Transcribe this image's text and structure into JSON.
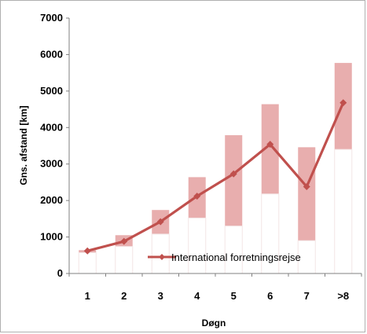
{
  "chart_data": {
    "type": "line",
    "title": "",
    "xlabel": "Døgn",
    "ylabel": "Gns. afstand [km]",
    "categories": [
      "1",
      "2",
      "3",
      "4",
      "5",
      "6",
      "7",
      ">8"
    ],
    "ylim": [
      0,
      7000
    ],
    "yticks": [
      0,
      1000,
      2000,
      3000,
      4000,
      5000,
      6000,
      7000
    ],
    "ytick_labels": [
      "0",
      "1000",
      "2000",
      "3000",
      "4000",
      "5000",
      "6000",
      "7000"
    ],
    "grid": false,
    "legend_position": "bottom-right",
    "series": [
      {
        "name": "International forretningsrejse",
        "type": "line",
        "marker": "diamond",
        "color": "#C0504D",
        "values": [
          620,
          880,
          1420,
          2120,
          2730,
          3540,
          2380,
          4680
        ]
      }
    ],
    "ranges": {
      "color": "#E8AEAE",
      "low": [
        570,
        740,
        1080,
        1520,
        1300,
        2180,
        900,
        3400
      ],
      "high": [
        640,
        1050,
        1740,
        2640,
        3790,
        4640,
        3460,
        5770
      ]
    }
  }
}
